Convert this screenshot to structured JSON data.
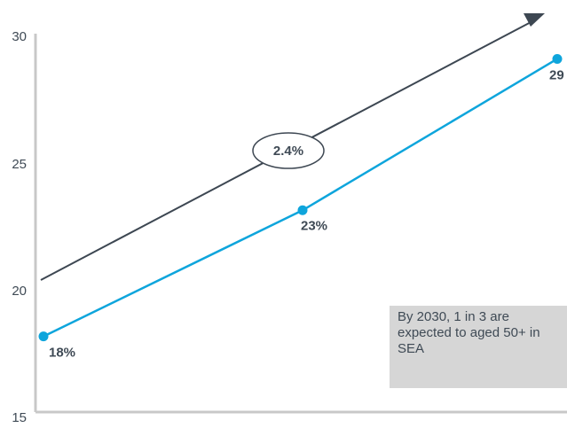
{
  "chart_data": {
    "type": "line",
    "ylim": [
      15,
      30
    ],
    "yticks": [
      "30",
      "25",
      "20",
      "15"
    ],
    "series": [
      {
        "values": [
          18,
          23,
          29
        ],
        "labels": [
          "18%",
          "23%",
          "29"
        ]
      }
    ],
    "trend_annotation": "2.4%",
    "note": "By 2030, 1 in 3 are expected to aged 50+ in SEA",
    "colors": {
      "line": "#0ea5dc",
      "trend": "#3d4752",
      "axis": "#c8c8c8",
      "note_bg": "#d6d6d6",
      "text": "#3f4a55"
    }
  }
}
